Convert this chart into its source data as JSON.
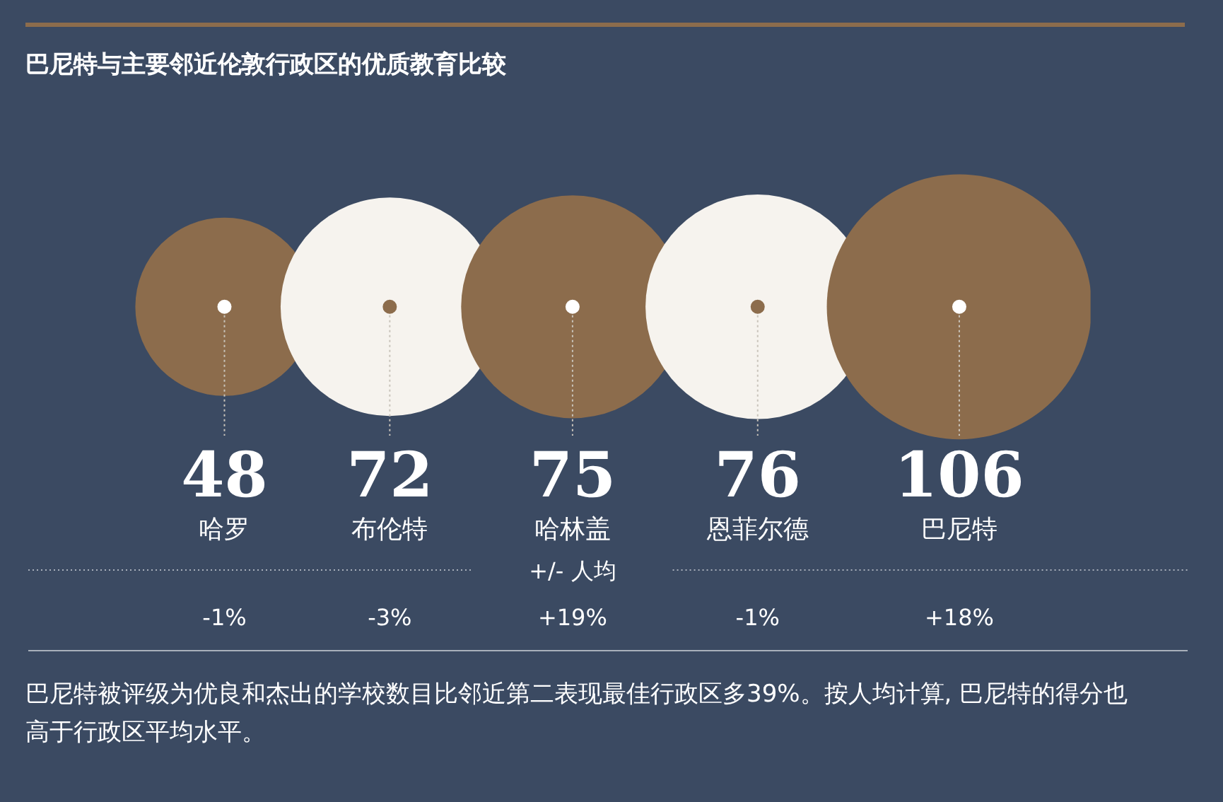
{
  "chart_data": {
    "type": "other",
    "title": "巴尼特与主要邻近伦敦行政区的优质教育比较",
    "categories": [
      "哈罗",
      "布伦特",
      "哈林盖",
      "恩菲尔德",
      "巴尼特"
    ],
    "series": [
      {
        "type": "bubble",
        "values": [
          48,
          72,
          75,
          76,
          106
        ],
        "colors": [
          "#8c6c4c",
          "#f6f3ee",
          "#8c6c4c",
          "#f6f3ee",
          "#8c6c4c"
        ]
      },
      {
        "name": "+/- 人均",
        "values": [
          -1,
          -3,
          19,
          -1,
          18
        ],
        "value_labels": [
          "-1%",
          "-3%",
          "+19%",
          "-1%",
          "+18%"
        ]
      }
    ],
    "data_labels": true,
    "annotations": [
      "巴尼特被评级为优良和杰出的学校数目比邻近第二表现最佳行政区多39%。按人均计算, 巴尼特的得分也高于行政区平均水平。"
    ]
  }
}
